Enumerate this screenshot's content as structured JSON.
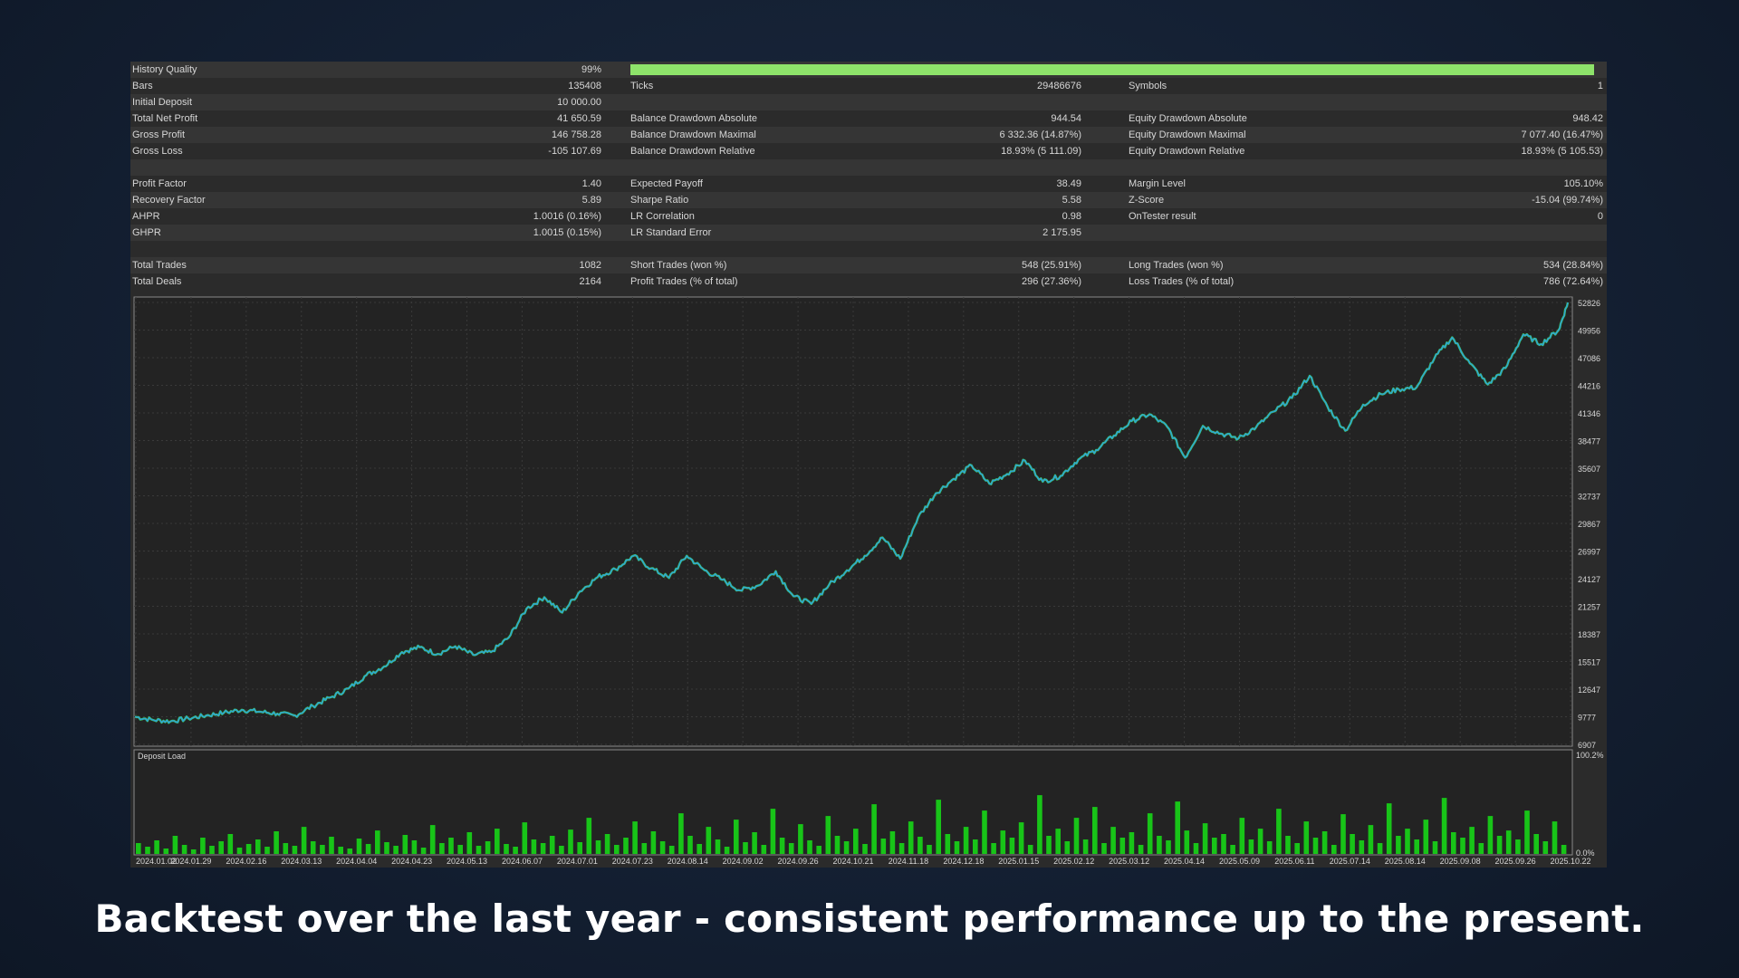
{
  "stats": {
    "history_quality": {
      "label": "History Quality",
      "value": "99%",
      "fill": 0.99
    },
    "rows": [
      {
        "c1": {
          "label": "Bars",
          "value": "135408"
        },
        "c2": {
          "label": "Ticks",
          "value": "29486676"
        },
        "c3": {
          "label": "Symbols",
          "value": "1"
        }
      },
      {
        "c1": {
          "label": "Initial Deposit",
          "value": "10 000.00"
        },
        "c2": {
          "label": "",
          "value": ""
        },
        "c3": {
          "label": "",
          "value": ""
        }
      },
      {
        "c1": {
          "label": "Total Net Profit",
          "value": "41 650.59"
        },
        "c2": {
          "label": "Balance Drawdown Absolute",
          "value": "944.54"
        },
        "c3": {
          "label": "Equity Drawdown Absolute",
          "value": "948.42"
        }
      },
      {
        "c1": {
          "label": "Gross Profit",
          "value": "146 758.28"
        },
        "c2": {
          "label": "Balance Drawdown Maximal",
          "value": "6 332.36 (14.87%)"
        },
        "c3": {
          "label": "Equity Drawdown Maximal",
          "value": "7 077.40 (16.47%)"
        }
      },
      {
        "c1": {
          "label": "Gross Loss",
          "value": "-105 107.69"
        },
        "c2": {
          "label": "Balance Drawdown Relative",
          "value": "18.93% (5 111.09)"
        },
        "c3": {
          "label": "Equity Drawdown Relative",
          "value": "18.93% (5 105.53)"
        }
      },
      {
        "c1": {
          "label": "",
          "value": ""
        },
        "c2": {
          "label": "",
          "value": ""
        },
        "c3": {
          "label": "",
          "value": ""
        }
      },
      {
        "c1": {
          "label": "Profit Factor",
          "value": "1.40"
        },
        "c2": {
          "label": "Expected Payoff",
          "value": "38.49"
        },
        "c3": {
          "label": "Margin Level",
          "value": "105.10%"
        }
      },
      {
        "c1": {
          "label": "Recovery Factor",
          "value": "5.89"
        },
        "c2": {
          "label": "Sharpe Ratio",
          "value": "5.58"
        },
        "c3": {
          "label": "Z-Score",
          "value": "-15.04 (99.74%)"
        }
      },
      {
        "c1": {
          "label": "AHPR",
          "value": "1.0016 (0.16%)"
        },
        "c2": {
          "label": "LR Correlation",
          "value": "0.98"
        },
        "c3": {
          "label": "OnTester result",
          "value": "0"
        }
      },
      {
        "c1": {
          "label": "GHPR",
          "value": "1.0015 (0.15%)"
        },
        "c2": {
          "label": "LR Standard Error",
          "value": "2 175.95"
        },
        "c3": {
          "label": "",
          "value": ""
        }
      },
      {
        "c1": {
          "label": "",
          "value": ""
        },
        "c2": {
          "label": "",
          "value": ""
        },
        "c3": {
          "label": "",
          "value": ""
        }
      },
      {
        "c1": {
          "label": "Total Trades",
          "value": "1082"
        },
        "c2": {
          "label": "Short Trades (won %)",
          "value": "548 (25.91%)"
        },
        "c3": {
          "label": "Long Trades (won %)",
          "value": "534 (28.84%)"
        }
      },
      {
        "c1": {
          "label": "Total Deals",
          "value": "2164"
        },
        "c2": {
          "label": "Profit Trades (% of total)",
          "value": "296 (27.36%)"
        },
        "c3": {
          "label": "Loss Trades (% of total)",
          "value": "786 (72.64%)"
        }
      }
    ]
  },
  "chart_data": [
    {
      "type": "line",
      "series": [],
      "ylim": [
        6907,
        52826
      ],
      "y_ticks": [
        "52826",
        "49956",
        "47086",
        "44216",
        "41346",
        "38477",
        "35607",
        "32737",
        "29867",
        "26997",
        "24127",
        "21257",
        "18387",
        "15517",
        "12647",
        "9777",
        "6907"
      ],
      "x_ticks": [
        "2024.01.02",
        "2024.01.29",
        "2024.02.16",
        "2024.03.13",
        "2024.04.04",
        "2024.04.23",
        "2024.05.13",
        "2024.06.07",
        "2024.07.01",
        "2024.07.23",
        "2024.08.14",
        "2024.09.02",
        "2024.09.26",
        "2024.10.21",
        "2024.11.18",
        "2024.12.18",
        "2025.01.15",
        "2025.02.12",
        "2025.03.12",
        "2025.04.14",
        "2025.05.09",
        "2025.06.11",
        "2025.07.14",
        "2025.08.14",
        "2025.09.08",
        "2025.09.26",
        "2025.10.22"
      ],
      "points": [
        [
          0,
          9777
        ],
        [
          2,
          9450
        ],
        [
          4,
          9300
        ],
        [
          6,
          9600
        ],
        [
          8,
          9900
        ],
        [
          10,
          10200
        ],
        [
          12,
          10500
        ],
        [
          14,
          10300
        ],
        [
          16,
          10100
        ],
        [
          18,
          9900
        ],
        [
          20,
          10900
        ],
        [
          22,
          11800
        ],
        [
          24,
          12700
        ],
        [
          26,
          14100
        ],
        [
          28,
          15000
        ],
        [
          30,
          16500
        ],
        [
          32,
          17000
        ],
        [
          34,
          16300
        ],
        [
          36,
          17100
        ],
        [
          38,
          16200
        ],
        [
          40,
          16500
        ],
        [
          42,
          18000
        ],
        [
          44,
          21000
        ],
        [
          46,
          22200
        ],
        [
          48,
          20600
        ],
        [
          50,
          22800
        ],
        [
          52,
          24300
        ],
        [
          54,
          25100
        ],
        [
          56,
          26500
        ],
        [
          58,
          25200
        ],
        [
          60,
          24200
        ],
        [
          62,
          26500
        ],
        [
          64,
          25000
        ],
        [
          66,
          24000
        ],
        [
          68,
          22900
        ],
        [
          70,
          23400
        ],
        [
          72,
          24900
        ],
        [
          74,
          22300
        ],
        [
          76,
          21500
        ],
        [
          78,
          23500
        ],
        [
          80,
          25000
        ],
        [
          82,
          26500
        ],
        [
          84,
          28400
        ],
        [
          86,
          26200
        ],
        [
          88,
          30500
        ],
        [
          90,
          33000
        ],
        [
          92,
          34500
        ],
        [
          94,
          35900
        ],
        [
          96,
          34000
        ],
        [
          98,
          35000
        ],
        [
          100,
          36400
        ],
        [
          102,
          34200
        ],
        [
          104,
          34800
        ],
        [
          106,
          36500
        ],
        [
          108,
          37500
        ],
        [
          110,
          39000
        ],
        [
          112,
          40500
        ],
        [
          114,
          41200
        ],
        [
          116,
          39900
        ],
        [
          118,
          36700
        ],
        [
          120,
          40000
        ],
        [
          122,
          39200
        ],
        [
          124,
          38700
        ],
        [
          126,
          39900
        ],
        [
          128,
          41500
        ],
        [
          130,
          42900
        ],
        [
          132,
          45200
        ],
        [
          134,
          42000
        ],
        [
          136,
          39500
        ],
        [
          138,
          42200
        ],
        [
          140,
          43300
        ],
        [
          142,
          43800
        ],
        [
          144,
          44000
        ],
        [
          146,
          47000
        ],
        [
          148,
          49200
        ],
        [
          150,
          46500
        ],
        [
          152,
          44300
        ],
        [
          154,
          46000
        ],
        [
          156,
          49500
        ],
        [
          158,
          48500
        ],
        [
          160,
          50000
        ],
        [
          161,
          52826
        ]
      ],
      "x_range": [
        0,
        161
      ]
    },
    {
      "type": "bar",
      "title": "Deposit Load",
      "y_ticks": [
        "100.2%",
        "0.0%"
      ],
      "ylim": [
        0,
        100.2
      ],
      "values": [
        12,
        8,
        15,
        6,
        20,
        10,
        5,
        18,
        9,
        14,
        22,
        7,
        11,
        16,
        8,
        25,
        12,
        9,
        30,
        14,
        10,
        19,
        8,
        6,
        17,
        11,
        26,
        13,
        9,
        21,
        15,
        7,
        32,
        12,
        18,
        10,
        24,
        9,
        14,
        28,
        11,
        8,
        35,
        16,
        12,
        20,
        9,
        27,
        13,
        40,
        15,
        22,
        10,
        18,
        36,
        12,
        25,
        14,
        9,
        45,
        20,
        11,
        30,
        16,
        8,
        38,
        13,
        24,
        10,
        50,
        18,
        12,
        33,
        15,
        9,
        42,
        20,
        14,
        28,
        11,
        55,
        17,
        25,
        12,
        36,
        19,
        10,
        60,
        22,
        14,
        30,
        16,
        48,
        12,
        26,
        18,
        35,
        10,
        65,
        20,
        28,
        14,
        40,
        16,
        52,
        12,
        30,
        18,
        24,
        10,
        45,
        20,
        15,
        58,
        26,
        12,
        34,
        18,
        22,
        10,
        40,
        16,
        28,
        14,
        50,
        20,
        12,
        36,
        18,
        25,
        10,
        44,
        22,
        15,
        32,
        12,
        56,
        20,
        28,
        16,
        38,
        14,
        62,
        24,
        18,
        30,
        12,
        42,
        20,
        26,
        16,
        48,
        22,
        14,
        36,
        10
      ]
    }
  ],
  "caption": "Backtest over the last year - consistent performance up to the present.",
  "colors": {
    "equity": "#2fa3d6",
    "balance": "#3fcf3f",
    "load": "#18c418",
    "grid": "#3a3a3a",
    "text": "#d6d6d6"
  }
}
